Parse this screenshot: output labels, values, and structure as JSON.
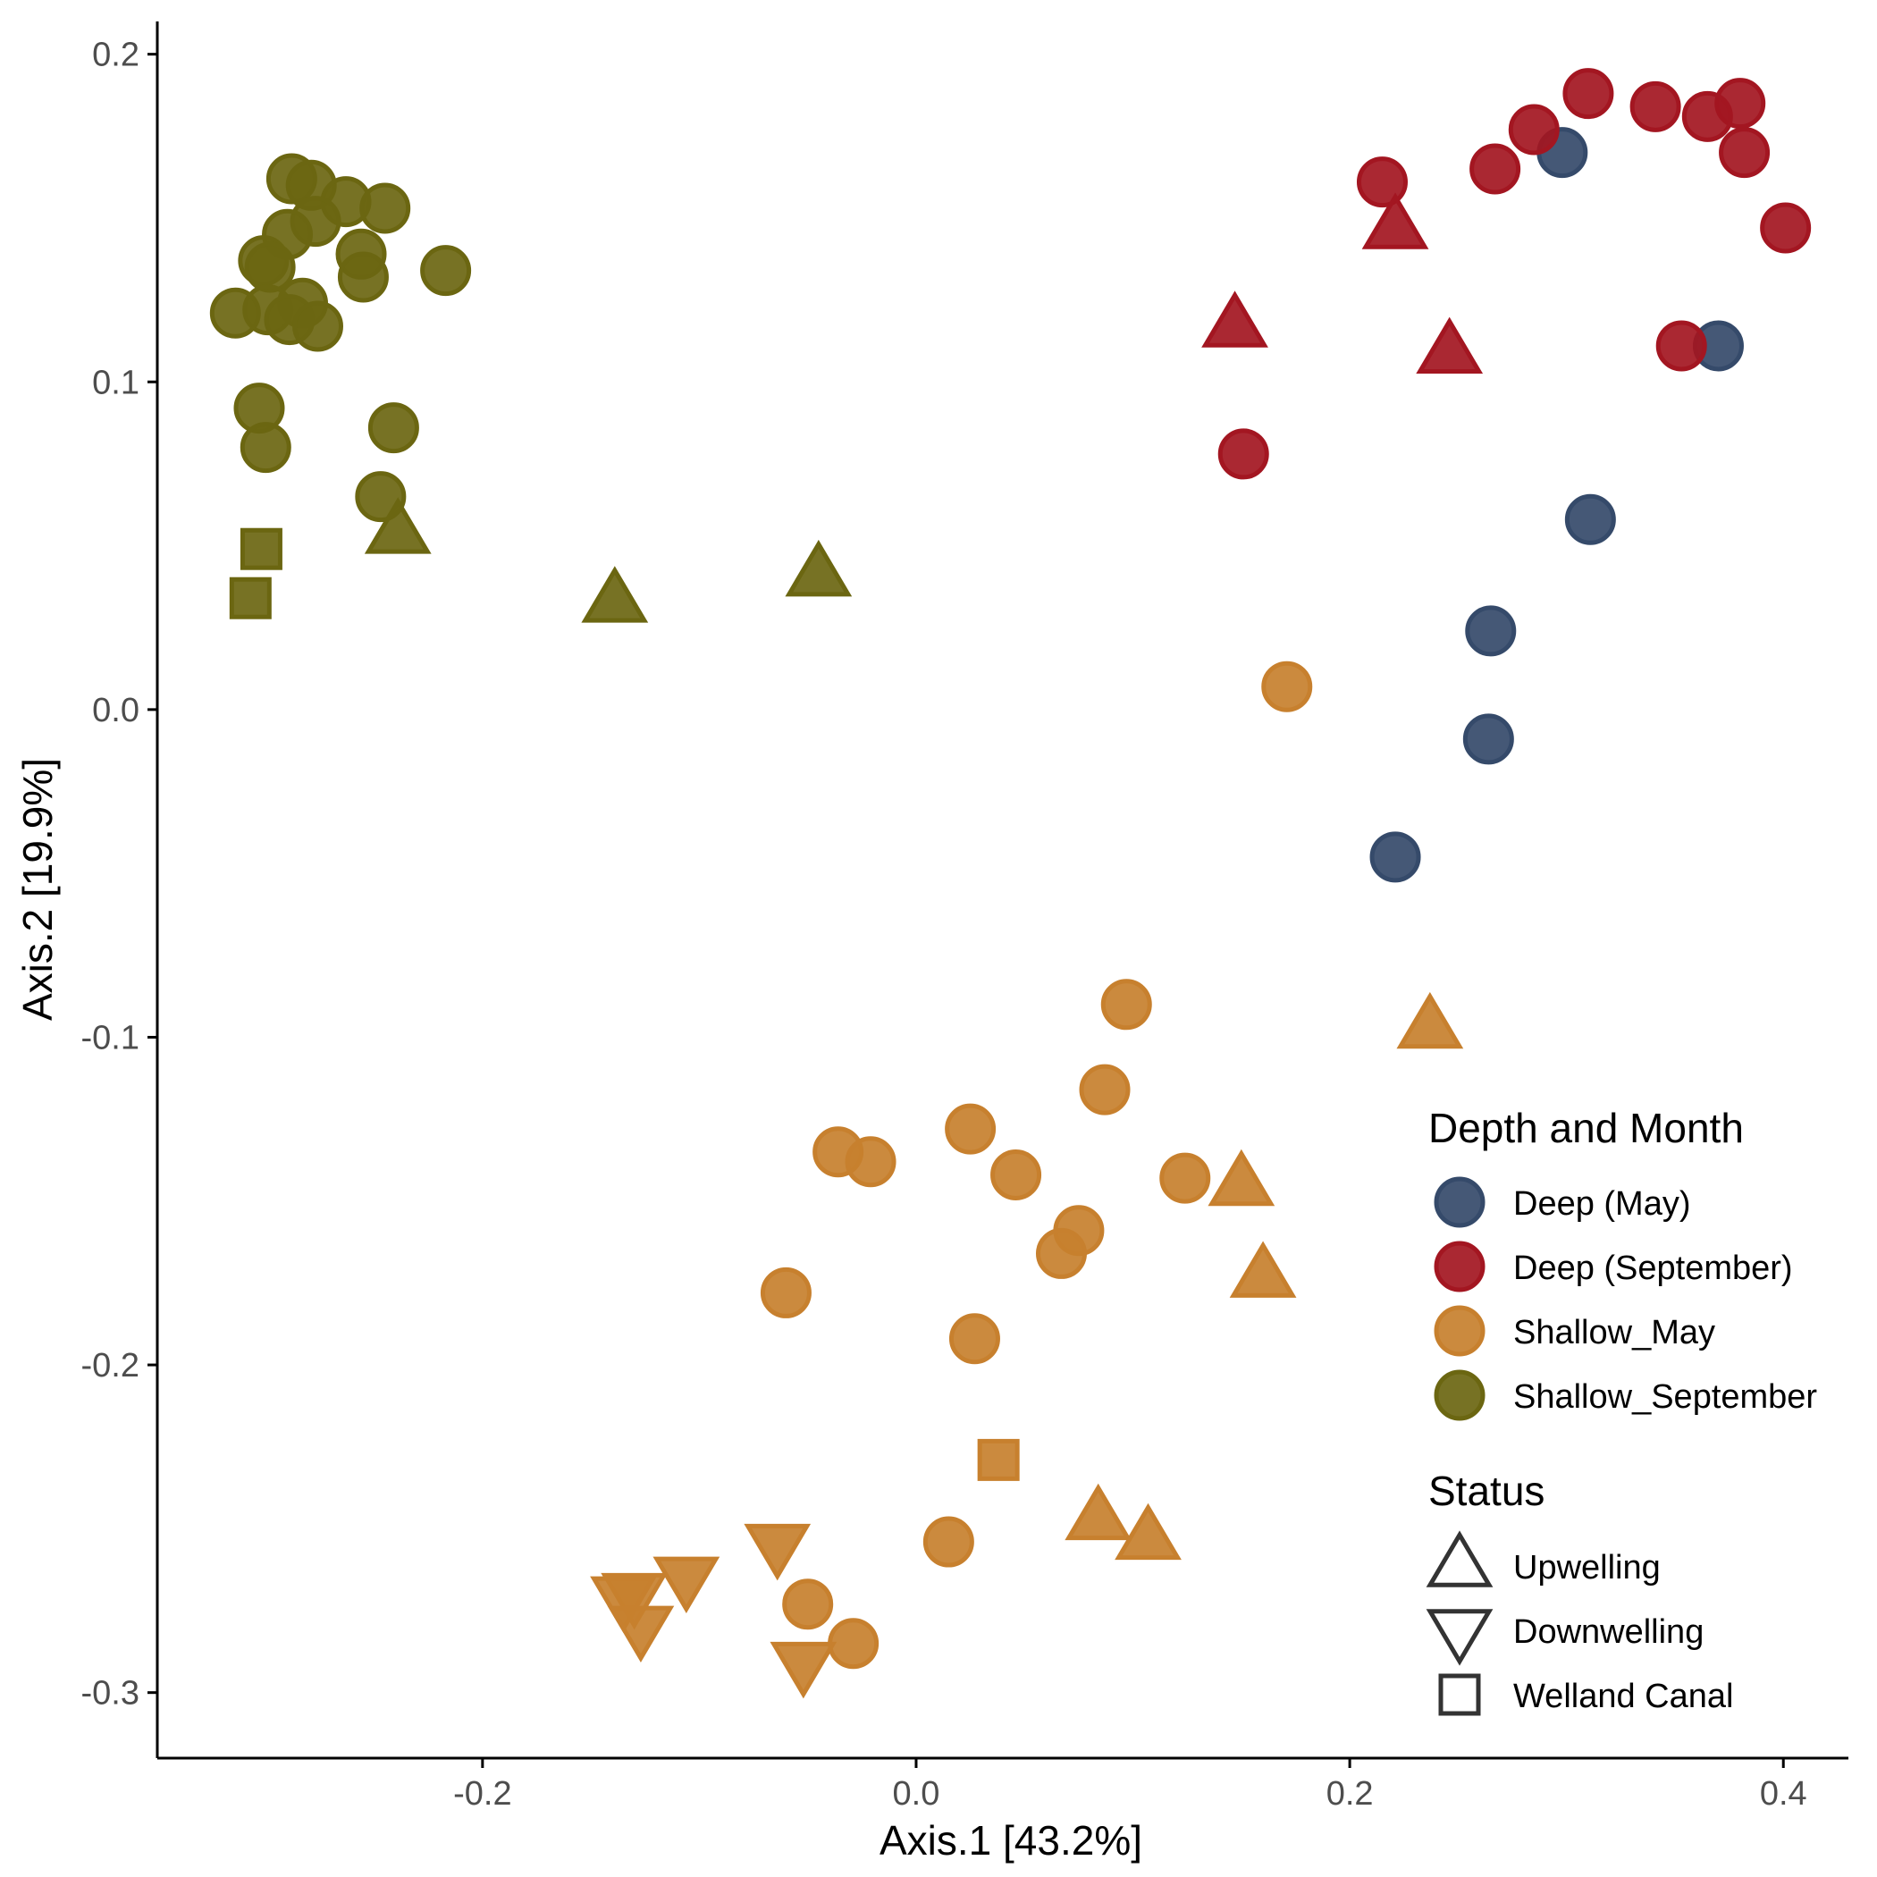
{
  "chart_data": {
    "type": "scatter",
    "xlabel": "Axis.1 [43.2%]",
    "ylabel": "Axis.2 [19.9%]",
    "xlim": [
      -0.35,
      0.43
    ],
    "ylim": [
      -0.32,
      0.21
    ],
    "x_ticks": [
      {
        "value": -0.2,
        "label": "-0.2"
      },
      {
        "value": 0.0,
        "label": "0.0"
      },
      {
        "value": 0.2,
        "label": "0.2"
      },
      {
        "value": 0.4,
        "label": "0.4"
      }
    ],
    "y_ticks": [
      {
        "value": 0.2,
        "label": "0.2"
      },
      {
        "value": 0.1,
        "label": "0.1"
      },
      {
        "value": 0.0,
        "label": "0.0"
      },
      {
        "value": -0.1,
        "label": "-0.1"
      },
      {
        "value": -0.2,
        "label": "-0.2"
      },
      {
        "value": -0.3,
        "label": "-0.3"
      }
    ],
    "grid": false,
    "legend_position": "right, inside bottom",
    "color_legend": {
      "title": "Depth and Month",
      "entries": [
        {
          "key": "deep_may",
          "label": "Deep (May)",
          "color": "#354A6A"
        },
        {
          "key": "deep_sep",
          "label": "Deep (September)",
          "color": "#A31621"
        },
        {
          "key": "shallow_may",
          "label": "Shallow_May",
          "color": "#C7802E"
        },
        {
          "key": "shallow_sep",
          "label": "Shallow_September",
          "color": "#6B6611"
        }
      ]
    },
    "shape_legend": {
      "title": "Status",
      "entries": [
        {
          "key": "up",
          "label": "Upwelling",
          "shape": "triangle-up"
        },
        {
          "key": "down",
          "label": "Downwelling",
          "shape": "triangle-down"
        },
        {
          "key": "canal",
          "label": "Welland Canal",
          "shape": "square"
        }
      ]
    },
    "series": [
      {
        "key": "deep_may",
        "points": [
          {
            "x": 0.298,
            "y": 0.17,
            "shape": "circle"
          },
          {
            "x": 0.37,
            "y": 0.111,
            "shape": "circle"
          },
          {
            "x": 0.311,
            "y": 0.058,
            "shape": "circle"
          },
          {
            "x": 0.265,
            "y": 0.024,
            "shape": "circle"
          },
          {
            "x": 0.264,
            "y": -0.009,
            "shape": "circle"
          },
          {
            "x": 0.221,
            "y": -0.045,
            "shape": "circle"
          }
        ]
      },
      {
        "key": "deep_sep",
        "points": [
          {
            "x": 0.31,
            "y": 0.188,
            "shape": "circle"
          },
          {
            "x": 0.341,
            "y": 0.184,
            "shape": "circle"
          },
          {
            "x": 0.38,
            "y": 0.185,
            "shape": "circle"
          },
          {
            "x": 0.365,
            "y": 0.181,
            "shape": "circle"
          },
          {
            "x": 0.285,
            "y": 0.177,
            "shape": "circle"
          },
          {
            "x": 0.382,
            "y": 0.17,
            "shape": "circle"
          },
          {
            "x": 0.267,
            "y": 0.165,
            "shape": "circle"
          },
          {
            "x": 0.215,
            "y": 0.161,
            "shape": "circle"
          },
          {
            "x": 0.401,
            "y": 0.147,
            "shape": "circle"
          },
          {
            "x": 0.353,
            "y": 0.111,
            "shape": "circle"
          },
          {
            "x": 0.151,
            "y": 0.078,
            "shape": "circle"
          },
          {
            "x": 0.221,
            "y": 0.147,
            "shape": "up"
          },
          {
            "x": 0.147,
            "y": 0.117,
            "shape": "up"
          },
          {
            "x": 0.246,
            "y": 0.109,
            "shape": "up"
          }
        ]
      },
      {
        "key": "shallow_may",
        "points": [
          {
            "x": 0.171,
            "y": 0.007,
            "shape": "circle"
          },
          {
            "x": 0.097,
            "y": -0.09,
            "shape": "circle"
          },
          {
            "x": 0.087,
            "y": -0.116,
            "shape": "circle"
          },
          {
            "x": 0.025,
            "y": -0.128,
            "shape": "circle"
          },
          {
            "x": -0.036,
            "y": -0.135,
            "shape": "circle"
          },
          {
            "x": -0.021,
            "y": -0.138,
            "shape": "circle"
          },
          {
            "x": 0.046,
            "y": -0.142,
            "shape": "circle"
          },
          {
            "x": 0.124,
            "y": -0.143,
            "shape": "circle"
          },
          {
            "x": 0.075,
            "y": -0.159,
            "shape": "circle"
          },
          {
            "x": 0.067,
            "y": -0.166,
            "shape": "circle"
          },
          {
            "x": -0.06,
            "y": -0.178,
            "shape": "circle"
          },
          {
            "x": 0.027,
            "y": -0.192,
            "shape": "circle"
          },
          {
            "x": 0.015,
            "y": -0.254,
            "shape": "circle"
          },
          {
            "x": -0.05,
            "y": -0.273,
            "shape": "circle"
          },
          {
            "x": -0.029,
            "y": -0.285,
            "shape": "circle"
          },
          {
            "x": 0.237,
            "y": -0.097,
            "shape": "up"
          },
          {
            "x": 0.15,
            "y": -0.145,
            "shape": "up"
          },
          {
            "x": 0.16,
            "y": -0.173,
            "shape": "up"
          },
          {
            "x": 0.084,
            "y": -0.247,
            "shape": "up"
          },
          {
            "x": 0.107,
            "y": -0.253,
            "shape": "up"
          },
          {
            "x": -0.064,
            "y": -0.255,
            "shape": "down"
          },
          {
            "x": -0.106,
            "y": -0.265,
            "shape": "down"
          },
          {
            "x": -0.13,
            "y": -0.27,
            "shape": "down"
          },
          {
            "x": -0.135,
            "y": -0.271,
            "shape": "down"
          },
          {
            "x": -0.127,
            "y": -0.28,
            "shape": "down"
          },
          {
            "x": -0.052,
            "y": -0.291,
            "shape": "down"
          },
          {
            "x": 0.038,
            "y": -0.229,
            "shape": "square"
          }
        ]
      },
      {
        "key": "shallow_sep",
        "points": [
          {
            "x": -0.288,
            "y": 0.162,
            "shape": "circle"
          },
          {
            "x": -0.279,
            "y": 0.16,
            "shape": "circle"
          },
          {
            "x": -0.263,
            "y": 0.155,
            "shape": "circle"
          },
          {
            "x": -0.245,
            "y": 0.153,
            "shape": "circle"
          },
          {
            "x": -0.277,
            "y": 0.149,
            "shape": "circle"
          },
          {
            "x": -0.29,
            "y": 0.145,
            "shape": "circle"
          },
          {
            "x": -0.256,
            "y": 0.139,
            "shape": "circle"
          },
          {
            "x": -0.301,
            "y": 0.137,
            "shape": "circle"
          },
          {
            "x": -0.298,
            "y": 0.135,
            "shape": "circle"
          },
          {
            "x": -0.217,
            "y": 0.134,
            "shape": "circle"
          },
          {
            "x": -0.255,
            "y": 0.132,
            "shape": "circle"
          },
          {
            "x": -0.283,
            "y": 0.124,
            "shape": "circle"
          },
          {
            "x": -0.299,
            "y": 0.122,
            "shape": "circle"
          },
          {
            "x": -0.314,
            "y": 0.121,
            "shape": "circle"
          },
          {
            "x": -0.289,
            "y": 0.119,
            "shape": "circle"
          },
          {
            "x": -0.276,
            "y": 0.117,
            "shape": "circle"
          },
          {
            "x": -0.303,
            "y": 0.092,
            "shape": "circle"
          },
          {
            "x": -0.241,
            "y": 0.086,
            "shape": "circle"
          },
          {
            "x": -0.3,
            "y": 0.08,
            "shape": "circle"
          },
          {
            "x": -0.247,
            "y": 0.065,
            "shape": "circle"
          },
          {
            "x": -0.239,
            "y": 0.054,
            "shape": "up"
          },
          {
            "x": -0.139,
            "y": 0.033,
            "shape": "up"
          },
          {
            "x": -0.045,
            "y": 0.041,
            "shape": "up"
          },
          {
            "x": -0.302,
            "y": 0.049,
            "shape": "square"
          },
          {
            "x": -0.307,
            "y": 0.034,
            "shape": "square"
          }
        ]
      }
    ]
  }
}
